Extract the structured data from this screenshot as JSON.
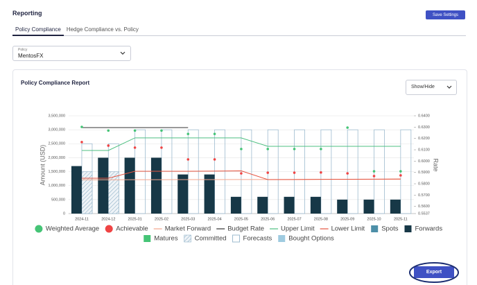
{
  "header": {
    "title": "Reporting",
    "button": "Save Settings"
  },
  "tabs": [
    "Policy Compliance",
    "Hedge Compliance vs. Policy"
  ],
  "select": {
    "label": "Policy",
    "value": "MentosFX"
  },
  "card": {
    "title": "Policy Compliance Report",
    "dropdown": "Show/Hide",
    "button": "Export"
  },
  "chart_data": {
    "type": "bar",
    "y_label": "Amount (USD)",
    "y2_label": "Rate",
    "categories": [
      "2024-11",
      "2024-12",
      "2025-01",
      "2025-02",
      "2025-03",
      "2025-04",
      "2025-05",
      "2025-06",
      "2025-07",
      "2025-08",
      "2025-09",
      "2025-10",
      "2025-11"
    ],
    "ylim": [
      0,
      3500000
    ],
    "yticks": [
      0,
      {
        "value": 500000,
        "label": "500,000"
      },
      {
        "value": 1000000,
        "label": "1,000,000"
      },
      {
        "value": 1500000,
        "label": "1,500,000"
      },
      {
        "value": 2000000,
        "label": "2,000,000"
      },
      {
        "value": 2500000,
        "label": "2,500,000"
      },
      {
        "value": 3000000,
        "label": "3,000,000"
      },
      {
        "value": 3500000,
        "label": "3,500,000"
      }
    ],
    "y2lim": [
      0.5537,
      0.64
    ],
    "y2ticks": [
      0.5537,
      {
        "value": 0.56,
        "label": "0.5600"
      },
      {
        "value": 0.57,
        "label": "0.5700"
      },
      {
        "value": 0.58,
        "label": "0.5800"
      },
      {
        "value": 0.59,
        "label": "0.5900"
      },
      {
        "value": 0.6,
        "label": "0.6000"
      },
      {
        "value": 0.61,
        "label": "0.6100"
      },
      {
        "value": 0.62,
        "label": "0.6200"
      },
      {
        "value": 0.63,
        "label": "0.6300"
      },
      {
        "value": 0.64,
        "label": "0.6400"
      }
    ],
    "grid": true,
    "series": [
      {
        "name": "Weighted Average",
        "type": "scatter",
        "axis": "y2",
        "color": "#45c476",
        "values": [
          0.6302,
          0.627,
          0.627,
          0.627,
          0.624,
          0.624,
          0.6107,
          0.6107,
          0.6107,
          0.6107,
          0.6296,
          0.591,
          0.591
        ]
      },
      {
        "name": "Achievable",
        "type": "scatter",
        "axis": "y2",
        "color": "#ef4444",
        "values": [
          0.6168,
          0.6137,
          0.6119,
          0.6119,
          0.6015,
          0.6015,
          0.5892,
          0.5898,
          0.5898,
          0.59,
          0.5892,
          0.5868,
          0.5874
        ]
      },
      {
        "name": "Market Forward",
        "type": "line",
        "axis": "y2",
        "color": "#f3a58c",
        "values": [
          0.5835,
          0.5835,
          0.5836,
          0.5836,
          0.5837,
          0.5837,
          0.5838,
          0.5838,
          0.5838,
          0.5839,
          0.5839,
          0.584,
          0.584
        ]
      },
      {
        "name": "Budget Rate",
        "type": "line",
        "axis": "y2",
        "color": "#333333",
        "values": [
          0.6296,
          0.6296,
          0.6296,
          0.6296,
          0.6296,
          null,
          null,
          null,
          null,
          null,
          null,
          null,
          null
        ]
      },
      {
        "name": "Upper Limit",
        "type": "line",
        "axis": "y2",
        "color": "#4cbf80",
        "values": [
          0.6094,
          0.6094,
          0.6205,
          0.6205,
          0.6205,
          0.6205,
          0.6205,
          0.6131,
          0.6131,
          0.6131,
          0.6131,
          0.6131,
          0.6131
        ]
      },
      {
        "name": "Lower Limit",
        "type": "line",
        "axis": "y2",
        "color": "#e5533f",
        "values": [
          0.5849,
          0.5849,
          0.591,
          0.591,
          0.591,
          0.5912,
          0.5914,
          0.5837,
          0.5838,
          0.5839,
          0.584,
          0.5841,
          0.5842
        ]
      },
      {
        "name": "Spots",
        "type": "bar",
        "color": "#4d8fa8",
        "values": [
          null,
          null,
          null,
          null,
          null,
          null,
          null,
          null,
          null,
          null,
          null,
          null,
          null
        ]
      },
      {
        "name": "Forwards",
        "type": "bar",
        "color": "#173847",
        "values": [
          1700000,
          2000000,
          2000000,
          2000000,
          1400000,
          1400000,
          600000,
          600000,
          600000,
          600000,
          500000,
          500000,
          500000
        ]
      },
      {
        "name": "Matures",
        "type": "bar",
        "color": "#45c476",
        "values": [
          null,
          null,
          null,
          null,
          null,
          null,
          null,
          null,
          null,
          null,
          null,
          null,
          null
        ]
      },
      {
        "name": "Committed",
        "type": "bar",
        "style": "hatch",
        "color": "#7fa6bf",
        "values": [
          1500000,
          1500000,
          null,
          null,
          null,
          null,
          null,
          null,
          null,
          null,
          null,
          null,
          null
        ]
      },
      {
        "name": "Forecasts",
        "type": "bar",
        "style": "outline",
        "color": "#9dbbcf",
        "values": [
          2500000,
          2500000,
          3000000,
          3000000,
          3000000,
          3000000,
          3000000,
          3000000,
          3000000,
          3000000,
          3000000,
          3000000,
          3000000
        ]
      },
      {
        "name": "Bought Options",
        "type": "bar",
        "color": "#9fcbe0",
        "values": [
          null,
          null,
          null,
          null,
          null,
          null,
          null,
          null,
          null,
          null,
          null,
          null,
          null
        ]
      }
    ]
  }
}
